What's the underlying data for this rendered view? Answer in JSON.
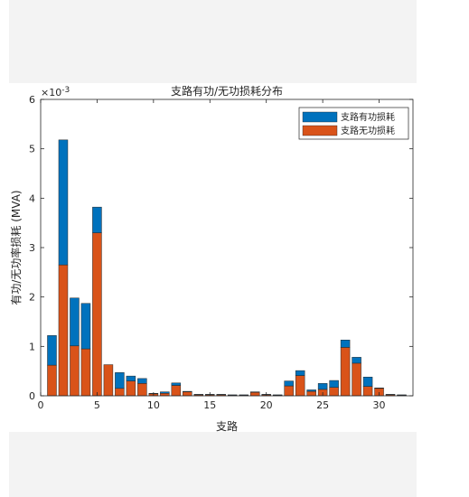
{
  "chart_data": {
    "type": "bar",
    "stacked": true,
    "title": "支路有功/无功损耗分布",
    "xlabel": "支路",
    "ylabel": "有功/无功率损耗 (MVA)",
    "y_exponent_label": "×10",
    "y_exponent_value": "-3",
    "xlim": [
      0,
      33
    ],
    "ylim": [
      0,
      6
    ],
    "xticks": [
      0,
      5,
      10,
      15,
      20,
      25,
      30
    ],
    "yticks": [
      0,
      1,
      2,
      3,
      4,
      5,
      6
    ],
    "legend_position": "top-right",
    "grid": false,
    "categories": [
      1,
      2,
      3,
      4,
      5,
      6,
      7,
      8,
      9,
      10,
      11,
      12,
      13,
      14,
      15,
      16,
      17,
      18,
      19,
      20,
      21,
      22,
      23,
      24,
      25,
      26,
      27,
      28,
      29,
      30,
      31,
      32
    ],
    "series": [
      {
        "name": "支路有功损耗",
        "color": "#0072BD",
        "values": [
          0.6,
          2.53,
          0.97,
          0.92,
          0.52,
          0.0,
          0.32,
          0.1,
          0.1,
          0.01,
          0.03,
          0.05,
          0.01,
          0.01,
          0.01,
          0.01,
          0.01,
          0.01,
          0.01,
          0.01,
          0.01,
          0.1,
          0.1,
          0.03,
          0.12,
          0.14,
          0.15,
          0.12,
          0.19,
          0.01,
          0.01,
          0.01
        ]
      },
      {
        "name": "支路无功损耗",
        "color": "#D95319",
        "values": [
          0.62,
          2.65,
          1.01,
          0.95,
          3.3,
          0.63,
          0.15,
          0.3,
          0.25,
          0.04,
          0.05,
          0.21,
          0.08,
          0.02,
          0.02,
          0.02,
          0.01,
          0.01,
          0.07,
          0.02,
          0.01,
          0.2,
          0.41,
          0.09,
          0.13,
          0.17,
          0.98,
          0.66,
          0.19,
          0.15,
          0.02,
          0.01
        ]
      }
    ]
  }
}
